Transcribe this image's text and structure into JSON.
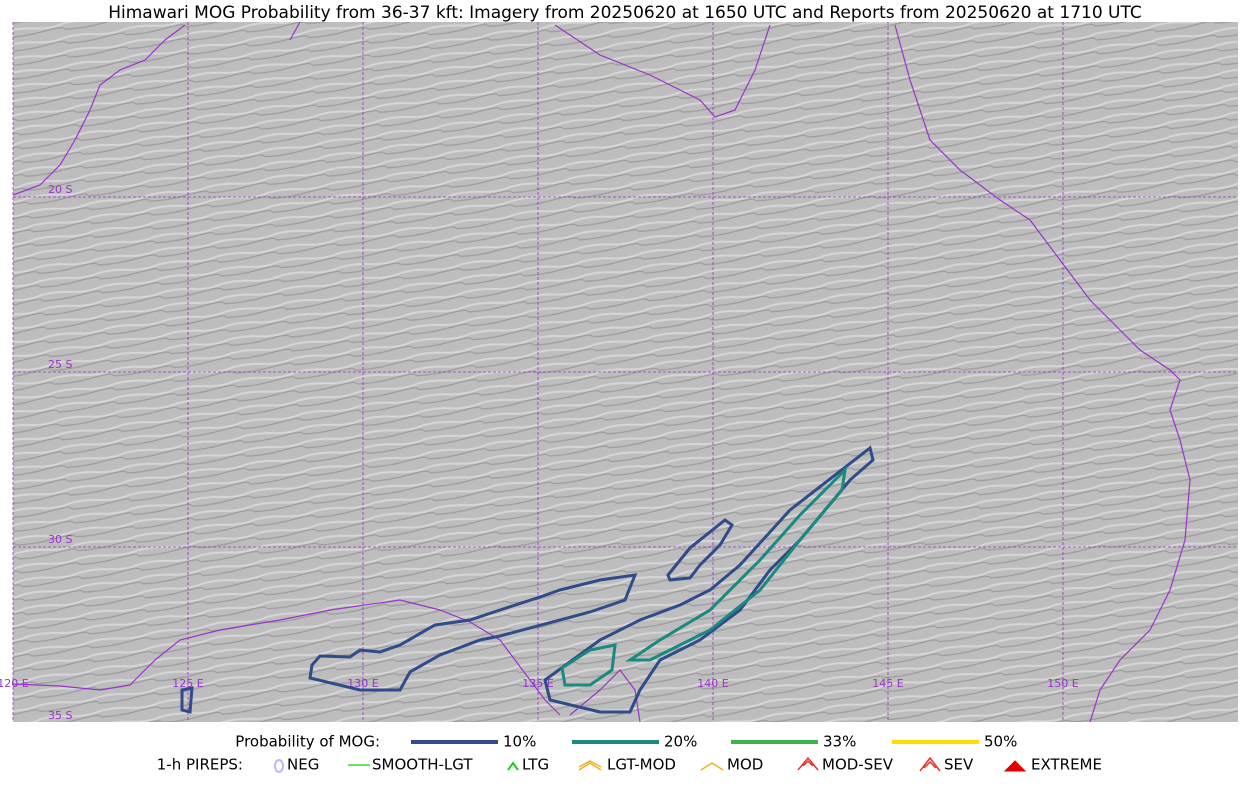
{
  "title": "Himawari MOG Probability from 36-37 kft: Imagery from 20250620 at 1650 UTC and Reports from 20250620 at 1710 UTC",
  "map": {
    "lat_labels": [
      "20 S",
      "25 S",
      "30 S",
      "35 S"
    ],
    "lon_labels": [
      "120 E",
      "125 E",
      "130 E",
      "135 E",
      "140 E",
      "145 E",
      "150 E"
    ]
  },
  "legend": {
    "probability": {
      "label": "Probability of MOG:",
      "items": [
        {
          "name": "10%",
          "color": "#2f4b8a"
        },
        {
          "name": "20%",
          "color": "#1a8a80"
        },
        {
          "name": "33%",
          "color": "#3cb44b"
        },
        {
          "name": "50%",
          "color": "#ffdd00"
        }
      ]
    },
    "pireps": {
      "label": "1-h PIREPS:",
      "items": [
        {
          "name": "NEG",
          "color": "#b8b8ff"
        },
        {
          "name": "SMOOTH-LGT",
          "color": "#33dd33"
        },
        {
          "name": "LTG",
          "color": "#22cc22"
        },
        {
          "name": "LGT-MOD",
          "color": "#f0b020"
        },
        {
          "name": "MOD",
          "color": "#f0b020"
        },
        {
          "name": "MOD-SEV",
          "color": "#e83030"
        },
        {
          "name": "SEV",
          "color": "#e83030"
        },
        {
          "name": "EXTREME",
          "color": "#e00000"
        }
      ]
    }
  }
}
